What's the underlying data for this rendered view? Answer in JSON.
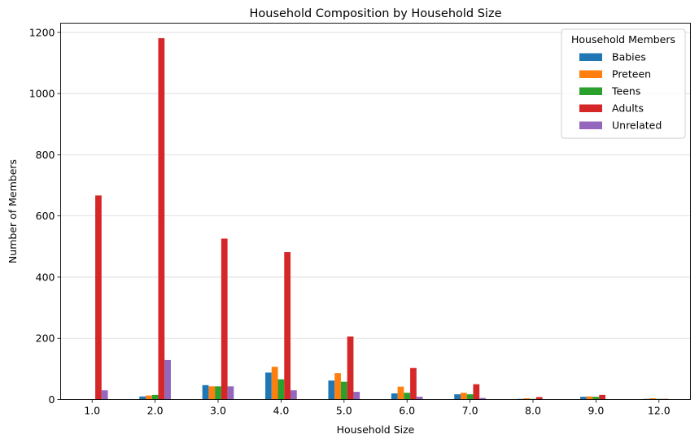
{
  "chart_data": {
    "type": "bar",
    "title": "Household Composition by Household Size",
    "xlabel": "Household Size",
    "ylabel": "Number of Members",
    "ylim": [
      0,
      1230
    ],
    "yticks": [
      0,
      200,
      400,
      600,
      800,
      1000,
      1200
    ],
    "grid": "horizontal",
    "legend": {
      "title": "Household Members",
      "placement": "top-right"
    },
    "categories": [
      "1.0",
      "2.0",
      "3.0",
      "4.0",
      "5.0",
      "6.0",
      "7.0",
      "8.0",
      "9.0",
      "12.0"
    ],
    "series": [
      {
        "name": "Babies",
        "color": "#1f77b4",
        "values": [
          0,
          10,
          47,
          88,
          62,
          20,
          17,
          2,
          9,
          2
        ]
      },
      {
        "name": "Preteen",
        "color": "#ff7f0e",
        "values": [
          0,
          13,
          43,
          107,
          86,
          42,
          22,
          4,
          10,
          4
        ]
      },
      {
        "name": "Teens",
        "color": "#2ca02c",
        "values": [
          0,
          15,
          43,
          66,
          58,
          22,
          17,
          2,
          9,
          2
        ]
      },
      {
        "name": "Adults",
        "color": "#d62728",
        "values": [
          667,
          1181,
          526,
          482,
          206,
          103,
          50,
          8,
          15,
          2
        ]
      },
      {
        "name": "Unrelated",
        "color": "#9467bd",
        "values": [
          30,
          129,
          43,
          30,
          25,
          9,
          5,
          0,
          0,
          0
        ]
      }
    ]
  }
}
